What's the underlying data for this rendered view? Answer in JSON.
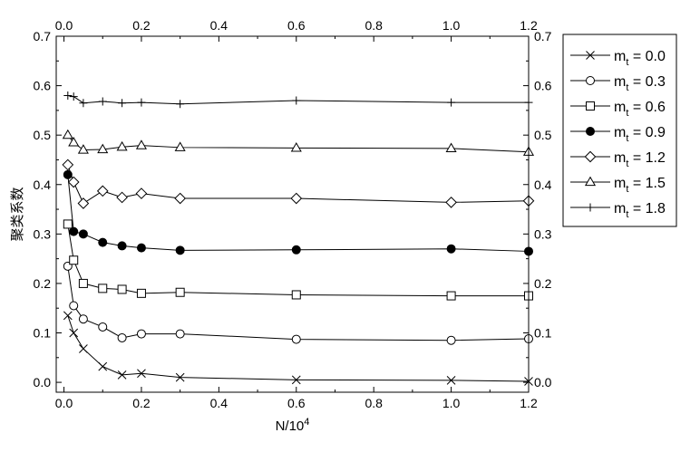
{
  "chart_data": {
    "type": "line",
    "title": "",
    "xlabel": "N/10",
    "xlabel_sup": "4",
    "ylabel": "聚类系数",
    "xlim": [
      -0.02,
      1.2
    ],
    "ylim": [
      -0.02,
      0.7
    ],
    "xticks": [
      "0.0",
      "0.2",
      "0.4",
      "0.6",
      "0.8",
      "1.0",
      "1.2"
    ],
    "yticks": [
      "0.0",
      "0.1",
      "0.2",
      "0.3",
      "0.4",
      "0.5",
      "0.6",
      "0.7"
    ],
    "grid": false,
    "legend_position": "outside-right",
    "legend_prefix": "m",
    "legend_subscript": "t",
    "legend_equals": " = ",
    "x": [
      0.01,
      0.025,
      0.05,
      0.1,
      0.15,
      0.2,
      0.3,
      0.6,
      1.0,
      1.2
    ],
    "series": [
      {
        "name": "0.0",
        "marker": "x",
        "values": [
          0.135,
          0.1,
          0.068,
          0.032,
          0.015,
          0.018,
          0.01,
          0.005,
          0.004,
          0.002
        ]
      },
      {
        "name": "0.3",
        "marker": "circle",
        "values": [
          0.235,
          0.155,
          0.128,
          0.112,
          0.09,
          0.098,
          0.098,
          0.087,
          0.085,
          0.088
        ]
      },
      {
        "name": "0.6",
        "marker": "square",
        "values": [
          0.32,
          0.247,
          0.2,
          0.19,
          0.188,
          0.18,
          0.182,
          0.177,
          0.175,
          0.175
        ]
      },
      {
        "name": "0.9",
        "marker": "dot",
        "values": [
          0.42,
          0.305,
          0.3,
          0.283,
          0.276,
          0.272,
          0.267,
          0.268,
          0.27,
          0.265
        ]
      },
      {
        "name": "1.2",
        "marker": "diamond",
        "values": [
          0.44,
          0.405,
          0.362,
          0.387,
          0.374,
          0.382,
          0.372,
          0.372,
          0.364,
          0.367
        ]
      },
      {
        "name": "1.5",
        "marker": "triangle",
        "values": [
          0.5,
          0.485,
          0.47,
          0.471,
          0.476,
          0.479,
          0.475,
          0.474,
          0.473,
          0.466
        ]
      },
      {
        "name": "1.8",
        "marker": "plus",
        "values": [
          0.58,
          0.578,
          0.565,
          0.568,
          0.565,
          0.566,
          0.563,
          0.57,
          0.566,
          0.566
        ]
      }
    ]
  }
}
